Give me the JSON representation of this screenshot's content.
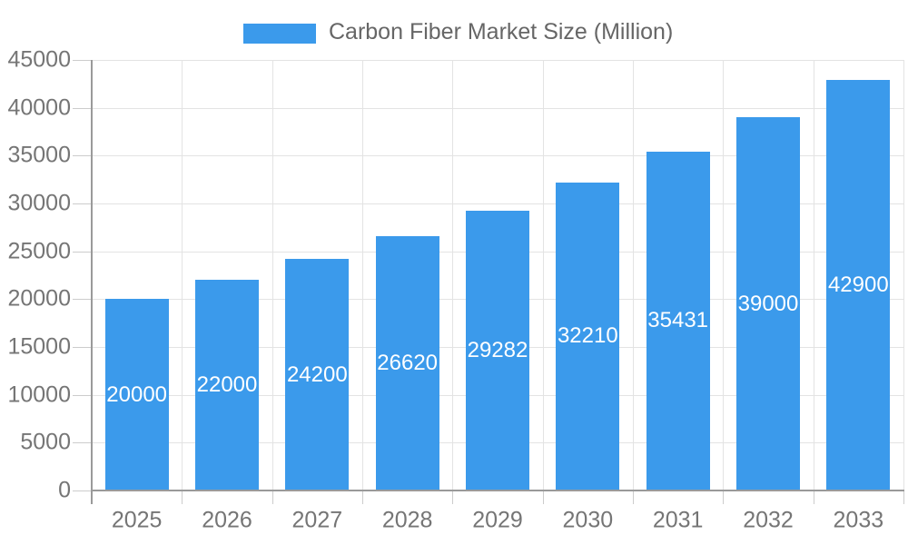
{
  "chart_data": {
    "type": "bar",
    "title": "Carbon Fiber Market Size (Million)",
    "categories": [
      "2025",
      "2026",
      "2027",
      "2028",
      "2029",
      "2030",
      "2031",
      "2032",
      "2033"
    ],
    "values": [
      20000,
      22000,
      24200,
      26620,
      29282,
      32210,
      35431,
      39000,
      42900
    ],
    "xlabel": "",
    "ylabel": "",
    "ylim": [
      0,
      45000
    ],
    "ytick_step": 5000,
    "ytick_labels": [
      "0",
      "5000",
      "10000",
      "15000",
      "20000",
      "25000",
      "30000",
      "35000",
      "40000",
      "45000"
    ],
    "legend": {
      "label": "Carbon Fiber Market Size (Million)",
      "position": "top"
    },
    "grid": true,
    "bar_color": "#3b9aeb",
    "value_label_color": "#ffffff",
    "axis_text_color": "#757575"
  }
}
